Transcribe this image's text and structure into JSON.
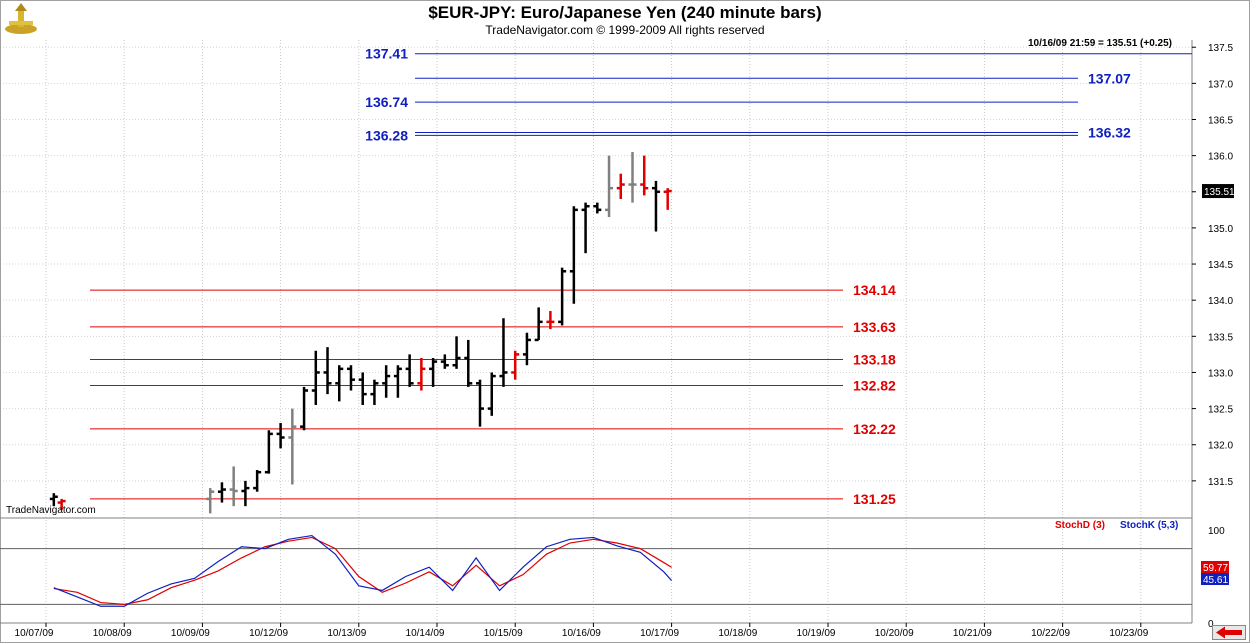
{
  "header": {
    "title": "$EUR-JPY:  Euro/Japanese Yen  (240 minute bars)",
    "subtitle": "TradeNavigator.com © 1999-2009 All rights reserved",
    "watermark": "TradeNavigator.com",
    "readout": "10/16/09 21:59 = 135.51 (+0.25)",
    "logo_icon": "navigator-logo-icon",
    "scroll_icon": "red-left-arrow-icon"
  },
  "chart_data": [
    {
      "type": "ohlc",
      "ylim": [
        131.0,
        137.6
      ],
      "yticks": [
        "131.5",
        "132.0",
        "132.5",
        "133.0",
        "133.5",
        "134.0",
        "134.5",
        "135.0",
        "135.5",
        "136.0",
        "136.5",
        "137.0",
        "137.5"
      ],
      "last_price_label": "135.51",
      "dates": [
        "10/07/09",
        "10/08/09",
        "10/09/09",
        "10/12/09",
        "10/13/09",
        "10/14/09",
        "10/15/09",
        "10/16/09",
        "10/17/09",
        "10/18/09",
        "10/19/09",
        "10/20/09",
        "10/21/09",
        "10/22/09",
        "10/23/09"
      ],
      "colors": {
        "black": "#000000",
        "gray": "#808080",
        "red": "#e00000"
      },
      "bars": [
        {
          "x": 0.1,
          "o": 131.25,
          "h": 131.33,
          "l": 131.15,
          "c": 131.28,
          "color": "black"
        },
        {
          "x": 0.2,
          "o": 131.2,
          "h": 131.25,
          "l": 131.1,
          "c": 131.22,
          "color": "red"
        },
        {
          "x": 2.1,
          "o": 131.25,
          "h": 131.4,
          "l": 131.05,
          "c": 131.35,
          "color": "gray"
        },
        {
          "x": 2.25,
          "o": 131.35,
          "h": 131.48,
          "l": 131.2,
          "c": 131.38,
          "color": "black"
        },
        {
          "x": 2.4,
          "o": 131.38,
          "h": 131.7,
          "l": 131.15,
          "c": 131.36,
          "color": "gray"
        },
        {
          "x": 2.55,
          "o": 131.36,
          "h": 131.5,
          "l": 131.15,
          "c": 131.4,
          "color": "black"
        },
        {
          "x": 2.7,
          "o": 131.4,
          "h": 131.65,
          "l": 131.35,
          "c": 131.62,
          "color": "black"
        },
        {
          "x": 2.85,
          "o": 131.62,
          "h": 132.2,
          "l": 131.6,
          "c": 132.15,
          "color": "black"
        },
        {
          "x": 3.0,
          "o": 132.15,
          "h": 132.3,
          "l": 131.95,
          "c": 132.1,
          "color": "black"
        },
        {
          "x": 3.15,
          "o": 132.1,
          "h": 132.5,
          "l": 131.45,
          "c": 132.25,
          "color": "gray"
        },
        {
          "x": 3.3,
          "o": 132.25,
          "h": 132.8,
          "l": 132.2,
          "c": 132.75,
          "color": "black"
        },
        {
          "x": 3.45,
          "o": 132.75,
          "h": 133.3,
          "l": 132.55,
          "c": 133.0,
          "color": "black"
        },
        {
          "x": 3.6,
          "o": 133.0,
          "h": 133.35,
          "l": 132.7,
          "c": 132.85,
          "color": "black"
        },
        {
          "x": 3.75,
          "o": 132.85,
          "h": 133.1,
          "l": 132.6,
          "c": 133.05,
          "color": "black"
        },
        {
          "x": 3.9,
          "o": 133.05,
          "h": 133.1,
          "l": 132.75,
          "c": 132.9,
          "color": "black"
        },
        {
          "x": 4.05,
          "o": 132.9,
          "h": 133.0,
          "l": 132.55,
          "c": 132.7,
          "color": "black"
        },
        {
          "x": 4.2,
          "o": 132.7,
          "h": 132.9,
          "l": 132.55,
          "c": 132.85,
          "color": "black"
        },
        {
          "x": 4.35,
          "o": 132.85,
          "h": 133.1,
          "l": 132.65,
          "c": 132.95,
          "color": "black"
        },
        {
          "x": 4.5,
          "o": 132.95,
          "h": 133.1,
          "l": 132.65,
          "c": 133.05,
          "color": "black"
        },
        {
          "x": 4.65,
          "o": 133.05,
          "h": 133.25,
          "l": 132.8,
          "c": 132.85,
          "color": "black"
        },
        {
          "x": 4.8,
          "o": 132.85,
          "h": 133.2,
          "l": 132.75,
          "c": 133.05,
          "color": "red"
        },
        {
          "x": 4.95,
          "o": 133.05,
          "h": 133.2,
          "l": 132.8,
          "c": 133.15,
          "color": "black"
        },
        {
          "x": 5.1,
          "o": 133.15,
          "h": 133.25,
          "l": 133.05,
          "c": 133.1,
          "color": "black"
        },
        {
          "x": 5.25,
          "o": 133.1,
          "h": 133.5,
          "l": 133.05,
          "c": 133.2,
          "color": "black"
        },
        {
          "x": 5.4,
          "o": 133.2,
          "h": 133.45,
          "l": 132.8,
          "c": 132.85,
          "color": "black"
        },
        {
          "x": 5.55,
          "o": 132.85,
          "h": 132.9,
          "l": 132.25,
          "c": 132.5,
          "color": "black"
        },
        {
          "x": 5.7,
          "o": 132.5,
          "h": 133.0,
          "l": 132.4,
          "c": 132.95,
          "color": "black"
        },
        {
          "x": 5.85,
          "o": 132.95,
          "h": 133.75,
          "l": 132.8,
          "c": 133.0,
          "color": "black"
        },
        {
          "x": 6.0,
          "o": 133.0,
          "h": 133.3,
          "l": 132.9,
          "c": 133.25,
          "color": "red"
        },
        {
          "x": 6.15,
          "o": 133.25,
          "h": 133.55,
          "l": 133.1,
          "c": 133.45,
          "color": "black"
        },
        {
          "x": 6.3,
          "o": 133.45,
          "h": 133.9,
          "l": 133.45,
          "c": 133.7,
          "color": "black"
        },
        {
          "x": 6.45,
          "o": 133.7,
          "h": 133.85,
          "l": 133.6,
          "c": 133.7,
          "color": "red"
        },
        {
          "x": 6.6,
          "o": 133.7,
          "h": 134.45,
          "l": 133.65,
          "c": 134.4,
          "color": "black"
        },
        {
          "x": 6.75,
          "o": 134.4,
          "h": 135.3,
          "l": 133.95,
          "c": 135.25,
          "color": "black"
        },
        {
          "x": 6.9,
          "o": 135.25,
          "h": 135.35,
          "l": 134.65,
          "c": 135.3,
          "color": "black"
        },
        {
          "x": 7.05,
          "o": 135.3,
          "h": 135.35,
          "l": 135.2,
          "c": 135.25,
          "color": "black"
        },
        {
          "x": 7.2,
          "o": 135.25,
          "h": 136.0,
          "l": 135.15,
          "c": 135.55,
          "color": "gray"
        },
        {
          "x": 7.35,
          "o": 135.55,
          "h": 135.75,
          "l": 135.4,
          "c": 135.6,
          "color": "red"
        },
        {
          "x": 7.5,
          "o": 135.6,
          "h": 136.05,
          "l": 135.35,
          "c": 135.6,
          "color": "gray"
        },
        {
          "x": 7.65,
          "o": 135.6,
          "h": 136.0,
          "l": 135.45,
          "c": 135.55,
          "color": "red"
        },
        {
          "x": 7.8,
          "o": 135.55,
          "h": 135.65,
          "l": 134.95,
          "c": 135.5,
          "color": "black"
        },
        {
          "x": 7.95,
          "o": 135.5,
          "h": 135.55,
          "l": 135.25,
          "c": 135.51,
          "color": "red"
        }
      ],
      "fib_levels": [
        {
          "value": 137.41,
          "label": "137.41",
          "color": "#1020c0",
          "side": "left"
        },
        {
          "value": 137.07,
          "label": "137.07",
          "color": "#1020c0",
          "side": "right"
        },
        {
          "value": 136.74,
          "label": "136.74",
          "color": "#1020c0",
          "side": "left"
        },
        {
          "value": 136.32,
          "label": "136.32",
          "color": "#1020c0",
          "side": "right"
        },
        {
          "value": 136.28,
          "label": "136.28",
          "color": "#1020c0",
          "side": "left"
        },
        {
          "value": 134.14,
          "label": "134.14",
          "color": "#e00000",
          "side": "right"
        },
        {
          "value": 133.63,
          "label": "133.63",
          "color": "#e00000",
          "side": "right"
        },
        {
          "value": 133.18,
          "label": "133.18",
          "color": "#e00000",
          "side": "right"
        },
        {
          "value": 132.82,
          "label": "132.82",
          "color": "#e00000",
          "side": "right"
        },
        {
          "value": 132.22,
          "label": "132.22",
          "color": "#e00000",
          "side": "right"
        },
        {
          "value": 131.25,
          "label": "131.25",
          "color": "#e00000",
          "side": "right"
        }
      ]
    },
    {
      "type": "line",
      "ylim": [
        0,
        100
      ],
      "yticks": [
        "0",
        "100"
      ],
      "reference_lines": [
        20,
        80
      ],
      "series": [
        {
          "name": "StochD (3)",
          "color": "#e00000",
          "last_label": "59.77",
          "x": [
            0.1,
            0.4,
            0.7,
            1.0,
            1.3,
            1.6,
            1.9,
            2.2,
            2.5,
            2.8,
            3.1,
            3.4,
            3.7,
            4.0,
            4.3,
            4.6,
            4.9,
            5.2,
            5.5,
            5.8,
            6.1,
            6.4,
            6.7,
            7.0,
            7.3,
            7.6,
            7.9,
            8.0
          ],
          "values": [
            37,
            33,
            22,
            20,
            25,
            38,
            46,
            56,
            70,
            82,
            88,
            92,
            80,
            50,
            33,
            43,
            55,
            40,
            62,
            40,
            52,
            74,
            86,
            90,
            86,
            80,
            65,
            59.77
          ]
        },
        {
          "name": "StochK (5,3)",
          "color": "#1020c0",
          "last_label": "45.61",
          "x": [
            0.1,
            0.4,
            0.7,
            1.0,
            1.3,
            1.6,
            1.9,
            2.2,
            2.5,
            2.8,
            3.1,
            3.4,
            3.7,
            4.0,
            4.3,
            4.6,
            4.9,
            5.2,
            5.5,
            5.8,
            6.1,
            6.4,
            6.7,
            7.0,
            7.3,
            7.6,
            7.9,
            8.0
          ],
          "values": [
            38,
            28,
            18,
            18,
            32,
            42,
            48,
            66,
            82,
            80,
            90,
            94,
            74,
            40,
            35,
            50,
            60,
            35,
            70,
            35,
            60,
            82,
            90,
            92,
            83,
            76,
            55,
            45.61
          ]
        }
      ]
    }
  ]
}
